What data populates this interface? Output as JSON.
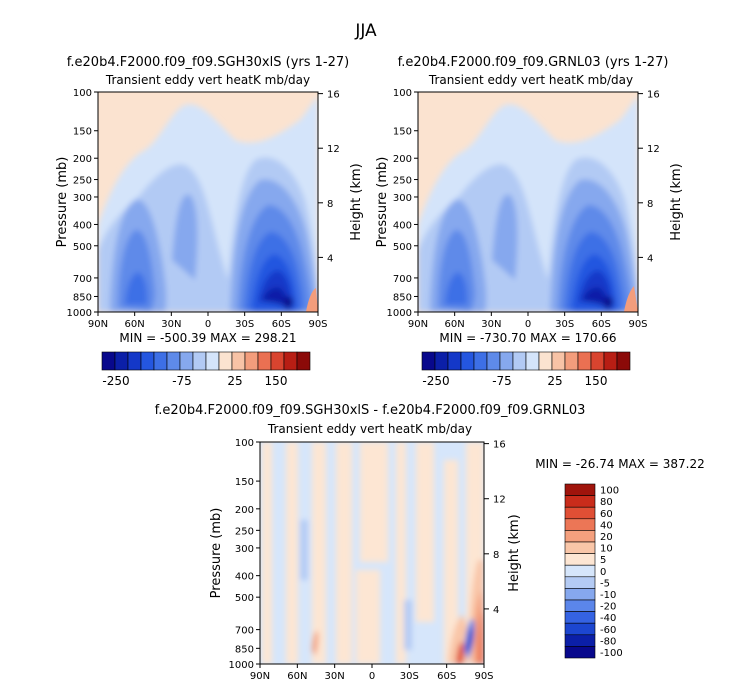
{
  "page_title": "JJA",
  "contour_colors": [
    "#08088c",
    "#0b1fa8",
    "#1438c8",
    "#2456e0",
    "#3d6fe6",
    "#5e8ae9",
    "#86a8ee",
    "#b2caf4",
    "#d4e4fa",
    "#fbe3d0",
    "#f8c3a6",
    "#f39d7c",
    "#ea7052",
    "#d9442f",
    "#b81e14",
    "#8b0a08"
  ],
  "diff_colors": [
    "#08088c",
    "#0b1fa8",
    "#1c46d0",
    "#3563e3",
    "#5b86ea",
    "#86a8ee",
    "#b4cbf4",
    "#d6e6fb",
    "#fde6d3",
    "#f9c6a8",
    "#f4a07e",
    "#ec7656",
    "#e04f35",
    "#c92c1b",
    "#a0140c"
  ],
  "chart_data": [
    {
      "type": "contour",
      "title": "f.e20b4.F2000.f09_f09.SGH30xlS (yrs 1-27)",
      "subtitle": "Transient eddy vert heatK  mb/day",
      "ylabel": "Pressure (mb)",
      "ylabel_right": "Height (km)",
      "x_ticks": [
        "90N",
        "60N",
        "30N",
        "0",
        "30S",
        "60S",
        "90S"
      ],
      "y_ticks": [
        "100",
        "150",
        "200",
        "250",
        "300",
        "400",
        "500",
        "700",
        "850",
        "1000"
      ],
      "height_ticks": [
        "16",
        "12",
        "8",
        "4"
      ],
      "min_max": "MIN = -500.39   MAX = 298.21",
      "colorbar_labels": [
        "-250",
        "-75",
        "25",
        "150"
      ],
      "min": -500.39,
      "max": 298.21
    },
    {
      "type": "contour",
      "title": "f.e20b4.F2000.f09_f09.GRNL03 (yrs 1-27)",
      "subtitle": "Transient eddy vert heatK  mb/day",
      "ylabel": "Pressure (mb)",
      "ylabel_right": "Height (km)",
      "x_ticks": [
        "90N",
        "60N",
        "30N",
        "0",
        "30S",
        "60S",
        "90S"
      ],
      "y_ticks": [
        "100",
        "150",
        "200",
        "250",
        "300",
        "400",
        "500",
        "700",
        "850",
        "1000"
      ],
      "height_ticks": [
        "16",
        "12",
        "8",
        "4"
      ],
      "min_max": "MIN = -730.70   MAX = 170.66",
      "colorbar_labels": [
        "-250",
        "-75",
        "25",
        "150"
      ],
      "min": -730.7,
      "max": 170.66
    },
    {
      "type": "contour",
      "title": "f.e20b4.F2000.f09_f09.SGH30xlS - f.e20b4.F2000.f09_f09.GRNL03",
      "subtitle": "Transient eddy vert heatK  mb/day",
      "ylabel": "Pressure (mb)",
      "ylabel_right": "Height (km)",
      "x_ticks": [
        "90N",
        "60N",
        "30N",
        "0",
        "30S",
        "60S",
        "90S"
      ],
      "y_ticks": [
        "100",
        "150",
        "200",
        "250",
        "300",
        "400",
        "500",
        "700",
        "850",
        "1000"
      ],
      "height_ticks": [
        "16",
        "12",
        "8",
        "4"
      ],
      "min_max": "MIN = -26.74   MAX = 387.22",
      "colorbar_labels": [
        "100",
        "80",
        "60",
        "40",
        "20",
        "10",
        "5",
        "0",
        "-5",
        "-10",
        "-20",
        "-40",
        "-60",
        "-80",
        "-100"
      ],
      "min": -26.74,
      "max": 387.22
    }
  ]
}
